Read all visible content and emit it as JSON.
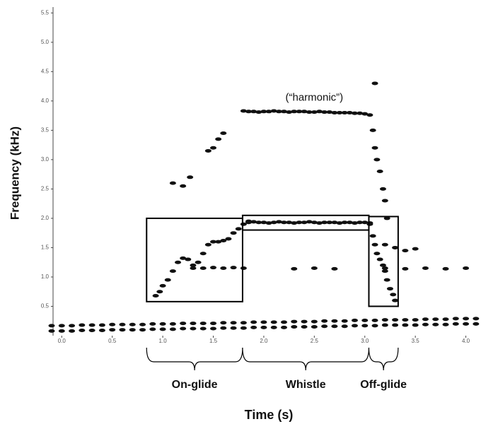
{
  "chart_data": {
    "type": "spectrogram",
    "x_label": "Time (s)",
    "y_label": "Frequency (kHz)",
    "annotation": "(“harmonic”)",
    "annotation_at": [
      2.5,
      4.05
    ],
    "xlim": [
      -0.1,
      4.15
    ],
    "ylim": [
      0,
      5.6
    ],
    "xticks": [
      {
        "value": 0,
        "label": "0.0"
      },
      0.5,
      {
        "value": 1,
        "label": "1.0"
      },
      1.5,
      {
        "value": 2,
        "label": "2.0"
      },
      2.5,
      {
        "value": 3,
        "label": "3.0"
      },
      3.5,
      {
        "value": 4,
        "label": "4.0"
      }
    ],
    "yticks": [
      0.5,
      {
        "value": 1,
        "label": "1.0"
      },
      1.5,
      {
        "value": 2,
        "label": "2.0"
      },
      2.5,
      {
        "value": 3,
        "label": "3.0"
      },
      3.5,
      {
        "value": 4,
        "label": "4.0"
      },
      4.5,
      {
        "value": 5,
        "label": "5.0"
      },
      5.5
    ],
    "regions": [
      {
        "label": "On-glide",
        "x": [
          0.84,
          1.79
        ],
        "y": [
          0.58,
          2.0
        ]
      },
      {
        "label": "Whistle",
        "x": [
          1.79,
          3.04
        ],
        "y": [
          1.8,
          2.05
        ]
      },
      {
        "label": "Off-glide",
        "x": [
          3.04,
          3.33
        ],
        "y": [
          0.5,
          2.03
        ]
      }
    ],
    "series": [
      {
        "color": "#111",
        "x": [
          0.93,
          0.97,
          1.0,
          1.05,
          1.1,
          1.15,
          1.2,
          1.25,
          1.3,
          1.35,
          1.4,
          1.45,
          1.5,
          1.55,
          1.6,
          1.65,
          1.7,
          1.75,
          1.8,
          1.85
        ],
        "y": [
          0.68,
          0.75,
          0.85,
          0.95,
          1.1,
          1.25,
          1.32,
          1.3,
          1.2,
          1.25,
          1.4,
          1.55,
          1.6,
          1.6,
          1.62,
          1.65,
          1.75,
          1.82,
          1.9,
          1.95
        ]
      },
      {
        "color": "#111",
        "x": [
          1.3,
          1.4,
          1.5,
          1.6,
          1.7,
          1.8,
          2.3,
          2.5,
          2.7,
          3.2,
          3.4,
          3.6,
          3.8,
          4.0
        ],
        "y": [
          1.15,
          1.15,
          1.16,
          1.15,
          1.16,
          1.15,
          1.14,
          1.15,
          1.14,
          1.15,
          1.14,
          1.15,
          1.14,
          1.15
        ]
      },
      {
        "color": "#111",
        "x": [
          1.85,
          1.9,
          1.95,
          2.0,
          2.05,
          2.1,
          2.15,
          2.2,
          2.25,
          2.3,
          2.35,
          2.4,
          2.45,
          2.5,
          2.55,
          2.6,
          2.65,
          2.7,
          2.75,
          2.8,
          2.85,
          2.9,
          2.95,
          3.0,
          3.05
        ],
        "y": [
          1.93,
          1.94,
          1.93,
          1.93,
          1.92,
          1.93,
          1.94,
          1.93,
          1.93,
          1.92,
          1.93,
          1.93,
          1.94,
          1.93,
          1.92,
          1.93,
          1.93,
          1.93,
          1.92,
          1.93,
          1.93,
          1.92,
          1.93,
          1.93,
          1.92
        ]
      },
      {
        "color": "#111",
        "x": [
          1.8,
          1.85,
          1.9,
          1.95,
          2.0,
          2.05,
          2.1,
          2.15,
          2.2,
          2.25,
          2.3,
          2.35,
          2.4,
          2.45,
          2.5,
          2.55,
          2.6,
          2.65,
          2.7,
          2.75,
          2.8,
          2.85,
          2.9,
          2.95,
          3.0,
          3.05
        ],
        "y": [
          3.83,
          3.82,
          3.82,
          3.81,
          3.82,
          3.82,
          3.83,
          3.82,
          3.82,
          3.81,
          3.82,
          3.82,
          3.82,
          3.81,
          3.81,
          3.82,
          3.81,
          3.81,
          3.8,
          3.8,
          3.8,
          3.8,
          3.79,
          3.79,
          3.78,
          3.76
        ]
      },
      {
        "color": "#111",
        "x": [
          1.1,
          1.2,
          1.27,
          1.45,
          1.5,
          1.55,
          1.6
        ],
        "y": [
          2.6,
          2.55,
          2.7,
          3.15,
          3.2,
          3.35,
          3.45
        ]
      },
      {
        "color": "#111",
        "x": [
          3.08,
          3.1,
          3.12,
          3.15,
          3.18,
          3.2,
          3.22,
          3.1
        ],
        "y": [
          3.5,
          3.2,
          3.0,
          2.8,
          2.5,
          2.3,
          2.0,
          4.3
        ]
      },
      {
        "color": "#111",
        "x": [
          3.05,
          3.08,
          3.1,
          3.12,
          3.15,
          3.18,
          3.2,
          3.22,
          3.25,
          3.28,
          3.3,
          3.2,
          3.3,
          3.4,
          3.5
        ],
        "y": [
          1.9,
          1.7,
          1.55,
          1.4,
          1.3,
          1.2,
          1.1,
          0.95,
          0.8,
          0.7,
          0.6,
          1.55,
          1.5,
          1.45,
          1.48
        ]
      },
      {
        "color": "#111",
        "x": [
          -0.1,
          0.0,
          0.1,
          0.2,
          0.3,
          0.4,
          0.5,
          0.6,
          0.7,
          0.8,
          0.9,
          1.0,
          1.1,
          1.2,
          1.3,
          1.4,
          1.5,
          1.6,
          1.7,
          1.8,
          1.9,
          2.0,
          2.1,
          2.2,
          2.3,
          2.4,
          2.5,
          2.6,
          2.7,
          2.8,
          2.9,
          3.0,
          3.1,
          3.2,
          3.3,
          3.4,
          3.5,
          3.6,
          3.7,
          3.8,
          3.9,
          4.0,
          4.1
        ],
        "y": [
          0.08,
          0.08,
          0.08,
          0.09,
          0.09,
          0.09,
          0.1,
          0.1,
          0.1,
          0.1,
          0.11,
          0.11,
          0.11,
          0.12,
          0.12,
          0.12,
          0.12,
          0.13,
          0.13,
          0.13,
          0.14,
          0.14,
          0.14,
          0.14,
          0.15,
          0.15,
          0.15,
          0.16,
          0.16,
          0.16,
          0.17,
          0.17,
          0.17,
          0.18,
          0.18,
          0.18,
          0.18,
          0.19,
          0.19,
          0.19,
          0.2,
          0.2,
          0.2
        ]
      },
      {
        "color": "#111",
        "x": [
          -0.1,
          0.0,
          0.1,
          0.2,
          0.3,
          0.4,
          0.5,
          0.6,
          0.7,
          0.8,
          0.9,
          1.0,
          1.1,
          1.2,
          1.3,
          1.4,
          1.5,
          1.6,
          1.7,
          1.8,
          1.9,
          2.0,
          2.1,
          2.2,
          2.3,
          2.4,
          2.5,
          2.6,
          2.7,
          2.8,
          2.9,
          3.0,
          3.1,
          3.2,
          3.3,
          3.4,
          3.5,
          3.6,
          3.7,
          3.8,
          3.9,
          4.0,
          4.1
        ],
        "y": [
          0.17,
          0.17,
          0.17,
          0.18,
          0.18,
          0.18,
          0.19,
          0.19,
          0.19,
          0.19,
          0.2,
          0.2,
          0.2,
          0.21,
          0.21,
          0.21,
          0.21,
          0.22,
          0.22,
          0.22,
          0.23,
          0.23,
          0.23,
          0.23,
          0.24,
          0.24,
          0.24,
          0.25,
          0.25,
          0.25,
          0.26,
          0.26,
          0.26,
          0.27,
          0.27,
          0.27,
          0.27,
          0.28,
          0.28,
          0.28,
          0.29,
          0.29,
          0.29
        ]
      }
    ]
  }
}
